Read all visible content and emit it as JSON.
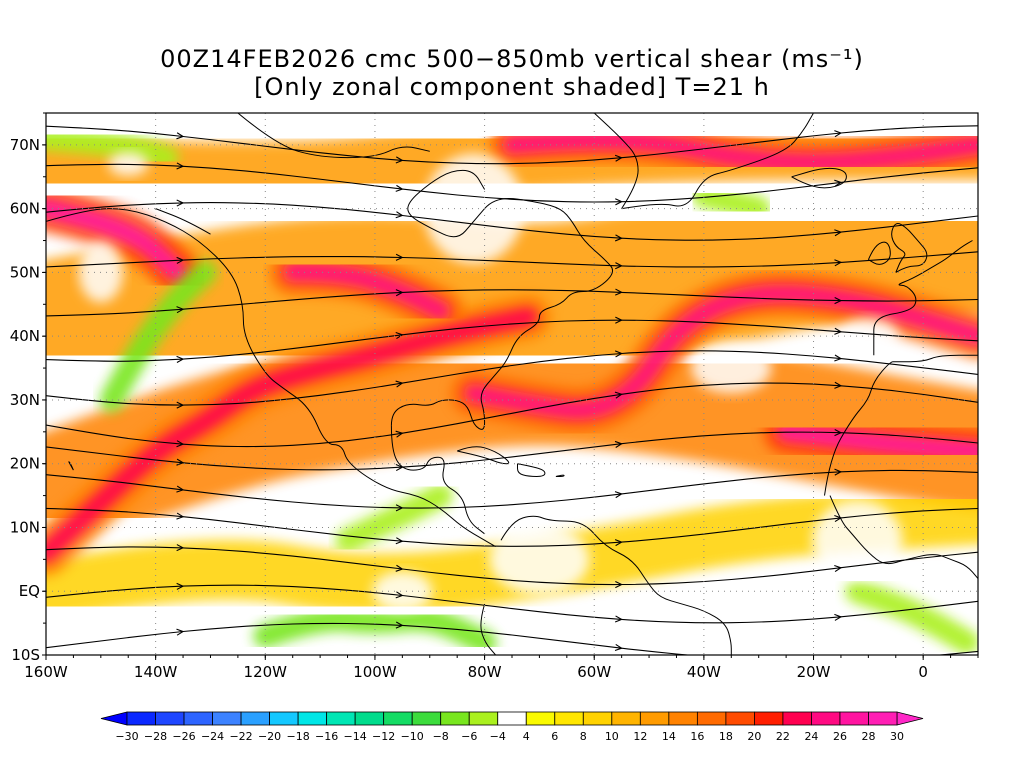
{
  "title": {
    "line1": "00Z14FEB2026 cmc 500−850mb vertical shear (ms⁻¹)",
    "line2": "[Only zonal component shaded] T=21 h"
  },
  "map": {
    "projection": "lat-lon",
    "lon_range": [
      -160,
      10
    ],
    "lat_range": [
      -10,
      75
    ],
    "lat_ticks": [
      {
        "value": 70,
        "label": "70N"
      },
      {
        "value": 60,
        "label": "60N"
      },
      {
        "value": 50,
        "label": "50N"
      },
      {
        "value": 40,
        "label": "40N"
      },
      {
        "value": 30,
        "label": "30N"
      },
      {
        "value": 20,
        "label": "20N"
      },
      {
        "value": 10,
        "label": "10N"
      },
      {
        "value": 0,
        "label": "EQ"
      },
      {
        "value": -10,
        "label": "10S"
      }
    ],
    "lon_ticks": [
      {
        "value": -160,
        "label": "160W"
      },
      {
        "value": -140,
        "label": "140W"
      },
      {
        "value": -120,
        "label": "120W"
      },
      {
        "value": -100,
        "label": "100W"
      },
      {
        "value": -80,
        "label": "80W"
      },
      {
        "value": -60,
        "label": "60W"
      },
      {
        "value": -40,
        "label": "40W"
      },
      {
        "value": -20,
        "label": "20W"
      },
      {
        "value": 0,
        "label": "0"
      }
    ],
    "grid": "dotted"
  },
  "colorbar": {
    "levels": [
      -30,
      -28,
      -26,
      -24,
      -22,
      -20,
      -18,
      -16,
      -14,
      -12,
      -10,
      -8,
      -6,
      -4,
      4,
      6,
      8,
      10,
      12,
      14,
      16,
      18,
      20,
      22,
      24,
      26,
      28,
      30
    ],
    "labels": [
      "−30",
      "−28",
      "−26",
      "−24",
      "−22",
      "−20",
      "−18",
      "−16",
      "−14",
      "−12",
      "−10",
      "−8",
      "−6",
      "−4",
      "4",
      "6",
      "8",
      "10",
      "12",
      "14",
      "16",
      "18",
      "20",
      "22",
      "24",
      "26",
      "28",
      "30"
    ],
    "colors": [
      "#0a28ff",
      "#1e46ff",
      "#2d64ff",
      "#3c82ff",
      "#2aa0ff",
      "#14c8ff",
      "#00e6e6",
      "#00e6b4",
      "#00dc8c",
      "#14dc64",
      "#3cdc3c",
      "#78e61e",
      "#aaf01e",
      "#ffffff",
      "#fafa00",
      "#ffe600",
      "#ffd200",
      "#ffb400",
      "#ff9b00",
      "#ff8200",
      "#ff6a00",
      "#ff4b00",
      "#ff1e00",
      "#ff0050",
      "#ff0a82",
      "#ff14a0",
      "#ff1eb4"
    ],
    "under_color": "#0000ff",
    "over_color": "#ff28c8"
  },
  "features": [
    {
      "name": "subtropical-jet-pacific",
      "value": 22,
      "pts": [
        [
          -160,
          6
        ],
        [
          -150,
          14
        ],
        [
          -140,
          22
        ],
        [
          -130,
          27
        ],
        [
          -122,
          32
        ],
        [
          -110,
          35
        ],
        [
          -100,
          37
        ],
        [
          -88,
          40
        ],
        [
          -78,
          42
        ],
        [
          -72,
          43
        ]
      ]
    },
    {
      "name": "atlantic-jet",
      "value": 24,
      "pts": [
        [
          -82,
          31
        ],
        [
          -70,
          29
        ],
        [
          -60,
          28
        ],
        [
          -52,
          32
        ],
        [
          -46,
          40
        ],
        [
          -38,
          45
        ],
        [
          -28,
          47
        ],
        [
          -15,
          46
        ],
        [
          -5,
          44
        ],
        [
          10,
          40
        ]
      ]
    },
    {
      "name": "africa-jet",
      "value": 26,
      "pts": [
        [
          -25,
          25
        ],
        [
          -15,
          24
        ],
        [
          -5,
          23
        ],
        [
          10,
          22
        ]
      ]
    },
    {
      "name": "north-pacific-jet",
      "value": 26,
      "pts": [
        [
          -160,
          60
        ],
        [
          -150,
          58
        ],
        [
          -142,
          55
        ],
        [
          -136,
          50
        ]
      ]
    },
    {
      "name": "ne-canada-jet",
      "value": 24,
      "pts": [
        [
          -75,
          70
        ],
        [
          -60,
          71
        ],
        [
          -45,
          70
        ],
        [
          -35,
          68
        ],
        [
          -20,
          67
        ],
        [
          -5,
          68
        ],
        [
          10,
          70
        ]
      ]
    },
    {
      "name": "midwest-jet",
      "value": 24,
      "pts": [
        [
          -115,
          50
        ],
        [
          -105,
          50
        ],
        [
          -95,
          47
        ],
        [
          -88,
          44
        ]
      ]
    }
  ],
  "negative_zones": [
    {
      "name": "pacific-trough",
      "value": -8,
      "pts": [
        [
          -148,
          30
        ],
        [
          -143,
          38
        ],
        [
          -136,
          46
        ],
        [
          -131,
          50
        ]
      ]
    },
    {
      "name": "south-america-trough",
      "value": -8,
      "pts": [
        [
          -120,
          -7
        ],
        [
          -110,
          -4
        ],
        [
          -100,
          -5
        ],
        [
          -90,
          -4
        ],
        [
          -80,
          -8
        ]
      ]
    },
    {
      "name": "caribbean-trough",
      "value": -6,
      "pts": [
        [
          -105,
          8
        ],
        [
          -95,
          12
        ],
        [
          -88,
          15
        ]
      ]
    },
    {
      "name": "africa-trough",
      "value": -6,
      "pts": [
        [
          -12,
          0
        ],
        [
          -5,
          -2
        ],
        [
          2,
          -5
        ],
        [
          8,
          -8
        ]
      ]
    },
    {
      "name": "greenland-trough",
      "value": -6,
      "pts": [
        [
          -40,
          62
        ],
        [
          -30,
          60
        ]
      ]
    },
    {
      "name": "arctic-trough",
      "value": -6,
      "pts": [
        [
          -160,
          71
        ],
        [
          -145,
          70
        ],
        [
          -138,
          68
        ]
      ]
    }
  ]
}
